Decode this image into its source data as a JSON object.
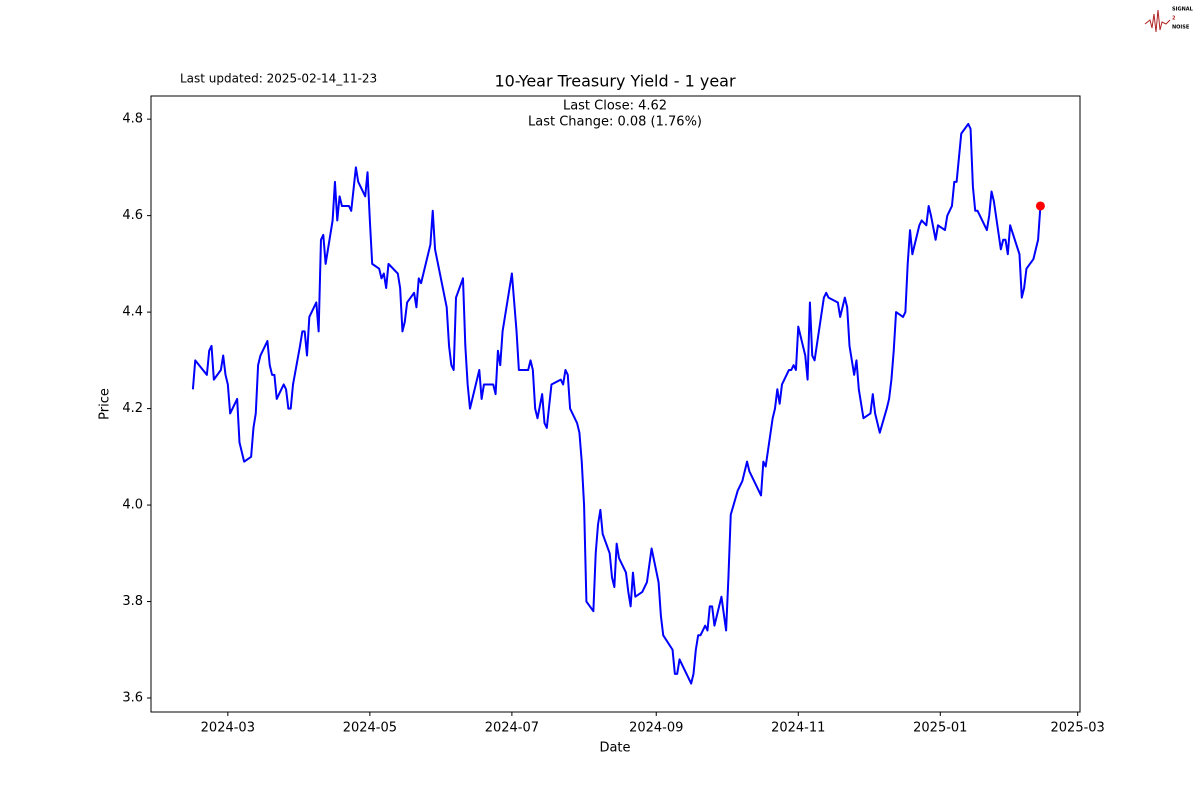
{
  "chart_data": {
    "type": "line",
    "title": "10-Year Treasury Yield - 1 year",
    "annotations": [
      "Last Close: 4.62",
      "Last Change: 0.08 (1.76%)"
    ],
    "updated": "Last updated: 2025-02-14_11-23",
    "logo": [
      "SIGNAL",
      "2",
      "NOISE"
    ],
    "xlabel": "Date",
    "ylabel": "Price",
    "xlim": [
      19750,
      20149
    ],
    "xticks": [
      {
        "value": 19783,
        "label": "2024-03"
      },
      {
        "value": 19844,
        "label": "2024-05"
      },
      {
        "value": 19905,
        "label": "2024-07"
      },
      {
        "value": 19967,
        "label": "2024-09"
      },
      {
        "value": 20028,
        "label": "2024-11"
      },
      {
        "value": 20089,
        "label": "2025-01"
      },
      {
        "value": 20148,
        "label": "2025-03"
      }
    ],
    "ylim": [
      3.571,
      4.848
    ],
    "yticks": [
      3.6,
      3.8,
      {
        "value": 4,
        "label": "4.0"
      },
      4.2,
      4.4,
      4.6,
      4.8
    ],
    "grid": false,
    "last_marker_color": "#ff0000",
    "series": [
      {
        "name": "Price",
        "color": "#0000ff",
        "x": [
          19768,
          19769,
          19774,
          19775,
          19776,
          19777,
          19780,
          19781,
          19782,
          19783,
          19784,
          19787,
          19788,
          19790,
          19793,
          19794,
          19795,
          19796,
          19797,
          19800,
          19801,
          19802,
          19803,
          19804,
          19807,
          19808,
          19809,
          19810,
          19811,
          19814,
          19815,
          19816,
          19817,
          19818,
          19821,
          19822,
          19823,
          19824,
          19825,
          19828,
          19829,
          19830,
          19831,
          19832,
          19835,
          19836,
          19838,
          19839,
          19842,
          19843,
          19844,
          19845,
          19848,
          19849,
          19850,
          19851,
          19852,
          19856,
          19857,
          19858,
          19859,
          19860,
          19863,
          19864,
          19865,
          19866,
          19870,
          19871,
          19872,
          19877,
          19878,
          19879,
          19880,
          19881,
          19884,
          19885,
          19886,
          19887,
          19891,
          19892,
          19893,
          19897,
          19898,
          19899,
          19900,
          19901,
          19905,
          19907,
          19908,
          19912,
          19913,
          19914,
          19915,
          19916,
          19918,
          19919,
          19920,
          19922,
          19926,
          19927,
          19928,
          19929,
          19930,
          19933,
          19934,
          19935,
          19936,
          19937,
          19940,
          19941,
          19942,
          19943,
          19944,
          19947,
          19948,
          19949,
          19950,
          19951,
          19954,
          19955,
          19956,
          19957,
          19958,
          19961,
          19962,
          19963,
          19965,
          19968,
          19969,
          19970,
          19974,
          19975,
          19976,
          19977,
          19979,
          19981,
          19982,
          19983,
          19984,
          19985,
          19986,
          19988,
          19989,
          19990,
          19991,
          19992,
          19995,
          19997,
          19998,
          19999,
          20002,
          20004,
          20006,
          20007,
          20009,
          20012,
          20013,
          20014,
          20017,
          20018,
          20019,
          20020,
          20021,
          20024,
          20025,
          20026,
          20027,
          20028,
          20031,
          20032,
          20033,
          20034,
          20035,
          20039,
          20040,
          20041,
          20045,
          20046,
          20047,
          20048,
          20049,
          20050,
          20052,
          20053,
          20054,
          20056,
          20059,
          20060,
          20061,
          20063,
          20066,
          20067,
          20068,
          20069,
          20070,
          20073,
          20074,
          20075,
          20076,
          20077,
          20080,
          20081,
          20083,
          20084,
          20085,
          20087,
          20088,
          20091,
          20092,
          20094,
          20095,
          20096,
          20097,
          20098,
          20101,
          20102,
          20103,
          20104,
          20105,
          20109,
          20110,
          20111,
          20112,
          20115,
          20116,
          20117,
          20118,
          20119,
          20123,
          20124,
          20125,
          20126,
          20129,
          20130,
          20131,
          20132
        ],
        "values": [
          4.24,
          4.3,
          4.27,
          4.32,
          4.33,
          4.26,
          4.28,
          4.31,
          4.27,
          4.25,
          4.19,
          4.22,
          4.13,
          4.09,
          4.1,
          4.16,
          4.19,
          4.29,
          4.31,
          4.34,
          4.29,
          4.27,
          4.27,
          4.22,
          4.25,
          4.24,
          4.2,
          4.2,
          4.25,
          4.33,
          4.36,
          4.36,
          4.31,
          4.39,
          4.42,
          4.36,
          4.55,
          4.56,
          4.5,
          4.59,
          4.67,
          4.59,
          4.64,
          4.62,
          4.62,
          4.61,
          4.7,
          4.67,
          4.64,
          4.69,
          4.59,
          4.5,
          4.49,
          4.47,
          4.48,
          4.45,
          4.5,
          4.48,
          4.45,
          4.36,
          4.38,
          4.42,
          4.44,
          4.41,
          4.47,
          4.46,
          4.54,
          4.61,
          4.53,
          4.41,
          4.33,
          4.29,
          4.28,
          4.43,
          4.47,
          4.33,
          4.25,
          4.2,
          4.28,
          4.22,
          4.25,
          4.25,
          4.23,
          4.32,
          4.29,
          4.36,
          4.48,
          4.36,
          4.28,
          4.28,
          4.3,
          4.28,
          4.2,
          4.18,
          4.23,
          4.17,
          4.16,
          4.25,
          4.26,
          4.25,
          4.28,
          4.27,
          4.2,
          4.17,
          4.15,
          4.09,
          4.0,
          3.8,
          3.78,
          3.9,
          3.96,
          3.99,
          3.94,
          3.9,
          3.85,
          3.83,
          3.92,
          3.89,
          3.86,
          3.82,
          3.79,
          3.86,
          3.81,
          3.82,
          3.83,
          3.84,
          3.91,
          3.84,
          3.77,
          3.73,
          3.7,
          3.65,
          3.65,
          3.68,
          3.66,
          3.64,
          3.63,
          3.65,
          3.7,
          3.73,
          3.73,
          3.75,
          3.74,
          3.79,
          3.79,
          3.75,
          3.81,
          3.74,
          3.85,
          3.98,
          4.03,
          4.05,
          4.09,
          4.07,
          4.05,
          4.02,
          4.09,
          4.08,
          4.18,
          4.2,
          4.24,
          4.21,
          4.25,
          4.28,
          4.28,
          4.29,
          4.28,
          4.37,
          4.31,
          4.26,
          4.42,
          4.31,
          4.3,
          4.43,
          4.44,
          4.43,
          4.42,
          4.39,
          4.41,
          4.43,
          4.41,
          4.33,
          4.27,
          4.3,
          4.24,
          4.18,
          4.19,
          4.23,
          4.19,
          4.15,
          4.2,
          4.22,
          4.26,
          4.32,
          4.4,
          4.39,
          4.4,
          4.5,
          4.57,
          4.52,
          4.58,
          4.59,
          4.58,
          4.62,
          4.6,
          4.55,
          4.58,
          4.57,
          4.6,
          4.62,
          4.67,
          4.67,
          4.72,
          4.77,
          4.79,
          4.78,
          4.66,
          4.61,
          4.61,
          4.57,
          4.6,
          4.65,
          4.63,
          4.53,
          4.55,
          4.55,
          4.52,
          4.58,
          4.52,
          4.43,
          4.45,
          4.49,
          4.51,
          4.53,
          4.55,
          4.62
        ]
      }
    ]
  }
}
